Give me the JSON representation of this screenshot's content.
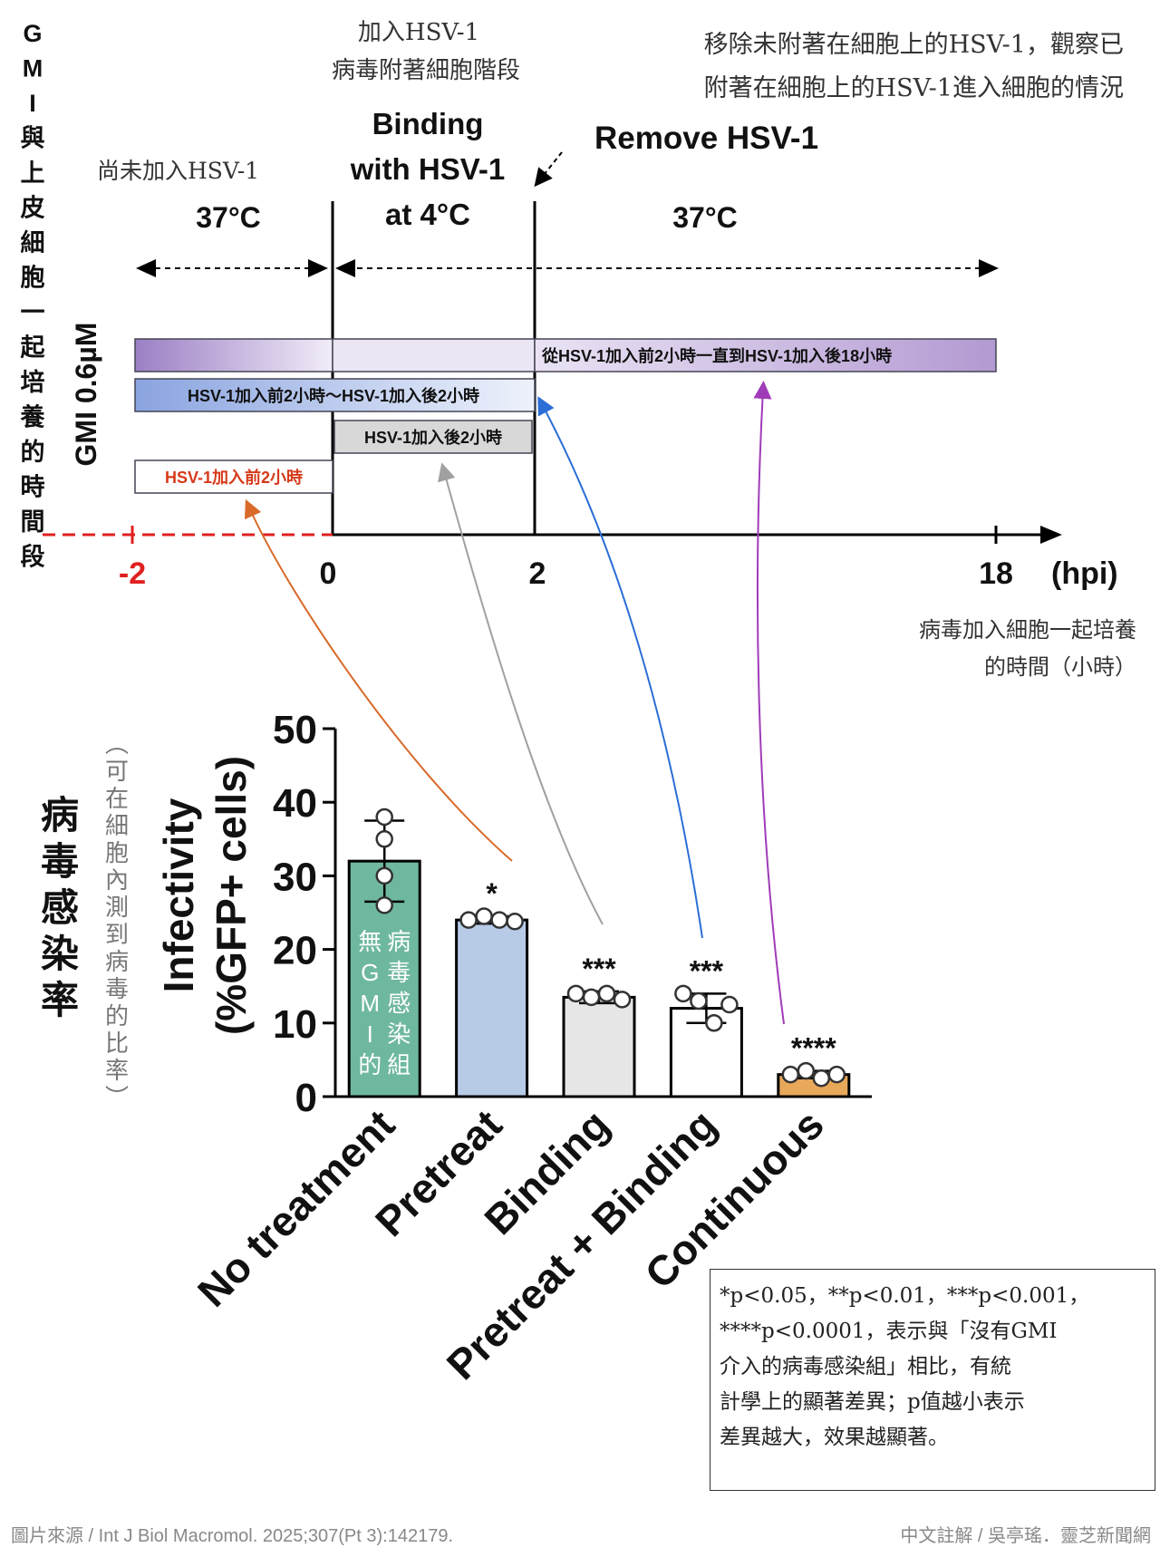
{
  "timeline": {
    "side_title": "GMI與上皮細胞一起培養的時間段",
    "side_title_chars": [
      "G",
      "M",
      "I",
      "與",
      "上",
      "皮",
      "細",
      "胞",
      "一",
      "起",
      "培",
      "養",
      "的",
      "時",
      "間",
      "段"
    ],
    "phase_before_note": "尚未加入HSV-1",
    "phase_binding_note_line1": "加入HSV-1",
    "phase_binding_note_line2": "病毒附著細胞階段",
    "remove_note_line1": "移除未附著在細胞上的HSV-1，觀察已",
    "remove_note_line2": "附著在細胞上的HSV-1進入細胞的情況",
    "temp_left": "37°C",
    "binding_line1": "Binding",
    "binding_line2": "with HSV-1",
    "binding_line3": "at 4°C",
    "remove_label": "Remove HSV-1",
    "temp_right": "37°C",
    "y_label": "GMI 0.6µM",
    "bar_continuous": "從HSV-1加入前2小時一直到HSV-1加入後18小時",
    "bar_pretreat_binding": "HSV-1加入前2小時～HSV-1加入後2小時",
    "bar_binding": "HSV-1加入後2小時",
    "bar_pretreat": "HSV-1加入前2小時",
    "tick_minus2": "-2",
    "tick_0": "0",
    "tick_2": "2",
    "tick_18": "18",
    "unit": "(hpi)",
    "axis_note_line1": "病毒加入細胞一起培養",
    "axis_note_line2": "的時間（小時）",
    "colors": {
      "continuous": "#9b7fc4",
      "pretreat_binding": "#8aa4e0",
      "binding": "#d8d8d8",
      "pretreat_text": "#d63a1a",
      "arrow_orange": "#d86a2a",
      "arrow_gray": "#a0a0a0",
      "arrow_blue": "#2b6ed6",
      "arrow_purple": "#a03bb8"
    }
  },
  "chart_data": {
    "type": "bar",
    "ylabel_line1": "Infectivity",
    "ylabel_line2": "(%GFP+ cells)",
    "ylim": [
      0,
      50
    ],
    "yticks": [
      0,
      10,
      20,
      30,
      40,
      50
    ],
    "categories": [
      "No treatment",
      "Pretreat",
      "Binding",
      "Pretreat + Binding",
      "Continuous"
    ],
    "values": [
      32,
      24,
      13.5,
      12,
      3
    ],
    "errors": [
      5.5,
      0.5,
      0.8,
      2,
      0.5
    ],
    "points": [
      [
        38,
        35,
        30,
        26
      ],
      [
        24,
        24.5,
        24,
        23.8
      ],
      [
        14,
        13.5,
        14,
        13.2
      ],
      [
        14,
        13,
        10,
        12.5
      ],
      [
        3,
        3.5,
        2.5,
        3
      ]
    ],
    "significance": [
      "",
      "*",
      "***",
      "***",
      "****"
    ],
    "colors": [
      "#6fb8a0",
      "#b7cbe6",
      "#e6e6e6",
      "#ffffff",
      "#e8a85a"
    ],
    "no_treatment_note_col1": [
      "無",
      "G",
      "M",
      "I",
      "的"
    ],
    "no_treatment_note_col2": [
      "病",
      "毒",
      "感",
      "染",
      "組"
    ],
    "no_treatment_note": "無GMI的病毒感染組",
    "left_title_chars": [
      "病",
      "毒",
      "感",
      "染",
      "率"
    ],
    "left_title": "病毒感染率",
    "left_sub_chars": [
      "︵",
      "可",
      "在",
      "細",
      "胞",
      "內",
      "測",
      "到",
      "病",
      "毒",
      "的",
      "比",
      "率",
      "︶"
    ],
    "left_sub": "（可在細胞內測到病毒的比率）"
  },
  "note_box": {
    "line1": "*p<0.05，**p<0.01，***p<0.001，",
    "line2": "****p<0.0001，表示與「沒有GMI",
    "line3": "介入的病毒感染組」相比，有統",
    "line4": "計學上的顯著差異；p值越小表示",
    "line5": "差異越大，效果越顯著。"
  },
  "footer": {
    "source": "圖片來源 / Int J Biol Macromol. 2025;307(Pt 3):142179.",
    "credit": "中文註解 / 吳亭瑤．靈芝新聞網"
  }
}
